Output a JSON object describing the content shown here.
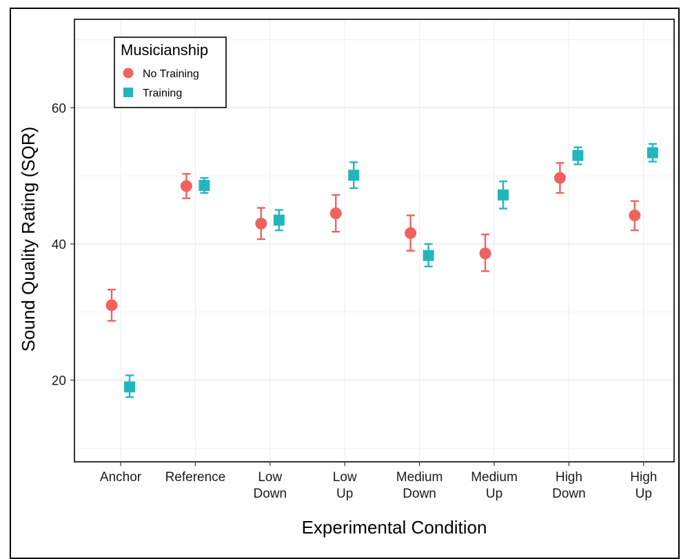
{
  "chart_data": {
    "type": "scatter",
    "title": "",
    "xlabel": "Experimental Condition",
    "ylabel": "Sound Quality Rating (SQR)",
    "ylim": [
      8,
      73
    ],
    "yticks": [
      20,
      40,
      60
    ],
    "grid": true,
    "legend_position": "top-left",
    "legend_title": "Musicianship",
    "categories": [
      [
        "Anchor"
      ],
      [
        "Reference"
      ],
      [
        "Low",
        "Down"
      ],
      [
        "Low",
        "Up"
      ],
      [
        "Medium",
        "Down"
      ],
      [
        "Medium",
        "Up"
      ],
      [
        "High",
        "Down"
      ],
      [
        "High",
        "Up"
      ]
    ],
    "series": [
      {
        "name": "No Training",
        "color": "#F0625F",
        "marker": "circle",
        "values": [
          31.0,
          48.5,
          43.0,
          44.5,
          41.6,
          38.6,
          49.7,
          44.2
        ],
        "ci_low": [
          28.7,
          46.7,
          40.7,
          41.8,
          39.0,
          36.0,
          47.5,
          42.0
        ],
        "ci_high": [
          33.3,
          50.3,
          45.3,
          47.2,
          44.2,
          41.4,
          51.9,
          46.3
        ]
      },
      {
        "name": "Training",
        "color": "#22B6BC",
        "marker": "square",
        "values": [
          19.0,
          48.6,
          43.5,
          50.1,
          38.3,
          47.2,
          53.0,
          53.4
        ],
        "ci_low": [
          17.5,
          47.5,
          42.0,
          48.2,
          36.7,
          45.2,
          51.7,
          52.1
        ],
        "ci_high": [
          20.7,
          49.7,
          45.0,
          52.0,
          40.0,
          49.2,
          54.2,
          54.7
        ]
      }
    ]
  }
}
